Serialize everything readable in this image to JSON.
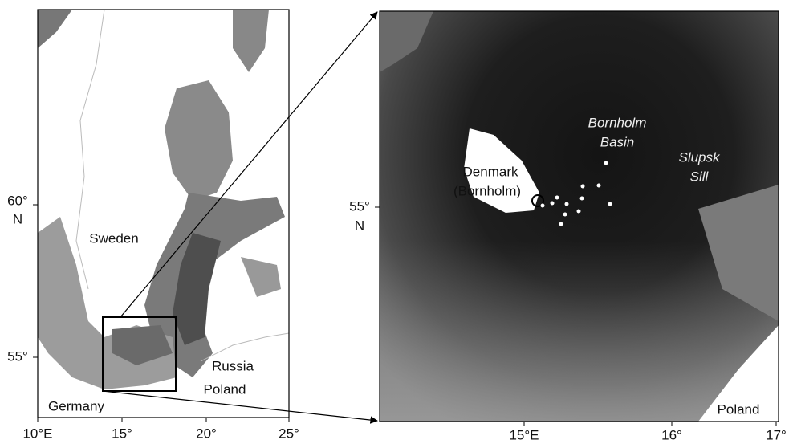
{
  "overview_map": {
    "x_labels": [
      "10°E",
      "15°",
      "20°",
      "25°"
    ],
    "y_labels": [
      [
        "60°",
        "N"
      ],
      [
        "55°"
      ]
    ],
    "places": [
      "Sweden",
      "Russia",
      "Poland",
      "Germany"
    ]
  },
  "detail_map": {
    "x_labels": [
      "15°E",
      "16°",
      "17°"
    ],
    "y_labels": [
      [
        "55°",
        "N"
      ]
    ],
    "places": [
      "Denmark",
      "(Bornholm)",
      "Poland"
    ],
    "features": [
      [
        "Bornholm",
        "Basin"
      ],
      [
        "Slupsk",
        "Sill"
      ]
    ]
  }
}
